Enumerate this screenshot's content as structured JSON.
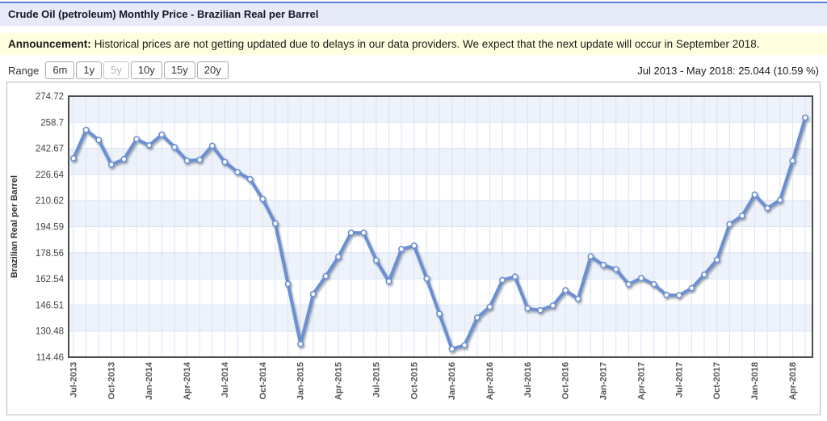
{
  "title": "Crude Oil (petroleum) Monthly Price - Brazilian Real per Barrel",
  "announcement": {
    "label": "Announcement:",
    "text": "Historical prices are not getting updated due to delays in our data providers. We expect that the next update will occur in September 2018."
  },
  "range": {
    "label": "Range",
    "options": [
      {
        "label": "6m",
        "selected": false
      },
      {
        "label": "1y",
        "selected": false
      },
      {
        "label": "5y",
        "selected": true
      },
      {
        "label": "10y",
        "selected": false
      },
      {
        "label": "15y",
        "selected": false
      },
      {
        "label": "20y",
        "selected": false
      }
    ],
    "summary": "Jul 2013 - May 2018: 25.044 (10.59 %)"
  },
  "colors": {
    "header_bg": "#e7ebf9",
    "header_border": "#5b83d6",
    "announcement_bg": "#ffffe0",
    "line": "#6a8fd2",
    "gridline": "#d9e3f5",
    "band": "#eef2fa",
    "plot_border": "#4d4d4d",
    "x_label": "#555555",
    "y_label": "#444444"
  },
  "chart_data": {
    "type": "line",
    "title": "Crude Oil (petroleum) Monthly Price - Brazilian Real per Barrel",
    "ylabel": "Brazilian Real per Barrel",
    "xlabel": "",
    "ylim": [
      114.46,
      274.72
    ],
    "yticks": [
      274.72,
      258.7,
      242.67,
      226.64,
      210.62,
      194.59,
      178.56,
      162.54,
      146.51,
      130.48,
      114.46
    ],
    "xtick_every": 3,
    "grid": true,
    "legend": "none",
    "marker": "white-circle",
    "x": [
      "Jul-2013",
      "Aug-2013",
      "Sep-2013",
      "Oct-2013",
      "Nov-2013",
      "Dec-2013",
      "Jan-2014",
      "Feb-2014",
      "Mar-2014",
      "Apr-2014",
      "May-2014",
      "Jun-2014",
      "Jul-2014",
      "Aug-2014",
      "Sep-2014",
      "Oct-2014",
      "Nov-2014",
      "Dec-2014",
      "Jan-2015",
      "Feb-2015",
      "Mar-2015",
      "Apr-2015",
      "May-2015",
      "Jun-2015",
      "Jul-2015",
      "Aug-2015",
      "Sep-2015",
      "Oct-2015",
      "Nov-2015",
      "Dec-2015",
      "Jan-2016",
      "Feb-2016",
      "Mar-2016",
      "Apr-2016",
      "May-2016",
      "Jun-2016",
      "Jul-2016",
      "Aug-2016",
      "Sep-2016",
      "Oct-2016",
      "Nov-2016",
      "Dec-2016",
      "Jan-2017",
      "Feb-2017",
      "Mar-2017",
      "Apr-2017",
      "May-2017",
      "Jun-2017",
      "Jul-2017",
      "Aug-2017",
      "Sep-2017",
      "Oct-2017",
      "Nov-2017",
      "Dec-2017",
      "Jan-2018",
      "Feb-2018",
      "Mar-2018",
      "Apr-2018",
      "May-2018"
    ],
    "values": [
      236.5,
      254.0,
      247.8,
      232.7,
      236.0,
      248.3,
      244.5,
      251.1,
      243.4,
      235.1,
      235.6,
      244.2,
      234.3,
      228.1,
      223.7,
      211.5,
      196.5,
      159.4,
      122.5,
      153.2,
      164.2,
      176.1,
      190.8,
      190.8,
      173.9,
      161.0,
      180.8,
      182.9,
      162.7,
      141.1,
      119.5,
      121.8,
      138.7,
      145.3,
      161.8,
      163.9,
      144.4,
      143.3,
      146.1,
      155.5,
      150.3,
      176.3,
      171.0,
      168.4,
      159.2,
      163.0,
      159.2,
      152.6,
      152.4,
      156.8,
      165.1,
      174.2,
      196.1,
      201.3,
      214.2,
      205.9,
      210.9,
      235.1,
      261.5
    ]
  }
}
